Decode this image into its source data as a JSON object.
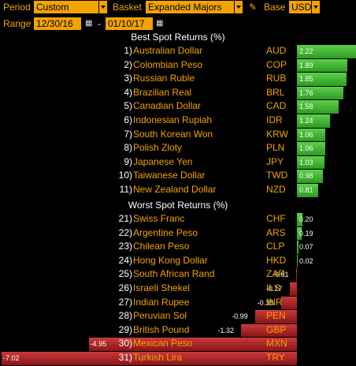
{
  "toolbar": {
    "period_label": "Period",
    "period_value": "Custom",
    "basket_label": "Basket",
    "basket_value": "Expanded Majors",
    "base_label": "Base",
    "base_value": "USD",
    "range_label": "Range",
    "range_start": "12/30/16",
    "range_dash": "-",
    "range_end": "01/10/17"
  },
  "best_title": "Best Spot Returns (%)",
  "worst_title": "Worst Spot Returns (%)",
  "colors": {
    "accent": "#f3a300",
    "positive": "#3aab2c",
    "negative": "#a82020"
  },
  "chart_data": {
    "type": "bar",
    "best": [
      {
        "rank": "1)",
        "name": "Australian Dollar",
        "code": "AUD",
        "value": 2.22,
        "label": "2.22"
      },
      {
        "rank": "2)",
        "name": "Colombian Peso",
        "code": "COP",
        "value": 1.89,
        "label": "1.89"
      },
      {
        "rank": "3)",
        "name": "Russian Ruble",
        "code": "RUB",
        "value": 1.85,
        "label": "1.85"
      },
      {
        "rank": "4)",
        "name": "Brazilian Real",
        "code": "BRL",
        "value": 1.76,
        "label": "1.76"
      },
      {
        "rank": "5)",
        "name": "Canadian Dollar",
        "code": "CAD",
        "value": 1.58,
        "label": "1.58"
      },
      {
        "rank": "6)",
        "name": "Indonesian Rupiah",
        "code": "IDR",
        "value": 1.24,
        "label": "1.24"
      },
      {
        "rank": "7)",
        "name": "South Korean Won",
        "code": "KRW",
        "value": 1.06,
        "label": "1.06"
      },
      {
        "rank": "8)",
        "name": "Polish Zloty",
        "code": "PLN",
        "value": 1.06,
        "label": "1.06"
      },
      {
        "rank": "9)",
        "name": "Japanese Yen",
        "code": "JPY",
        "value": 1.03,
        "label": "1.03"
      },
      {
        "rank": "10)",
        "name": "Taiwanese Dollar",
        "code": "TWD",
        "value": 0.98,
        "label": "0.98"
      },
      {
        "rank": "11)",
        "name": "New Zealand Dollar",
        "code": "NZD",
        "value": 0.81,
        "label": "0.81"
      }
    ],
    "worst": [
      {
        "rank": "21)",
        "name": "Swiss Franc",
        "code": "CHF",
        "value": 0.2,
        "label": "0.20"
      },
      {
        "rank": "22)",
        "name": "Argentine Peso",
        "code": "ARS",
        "value": 0.19,
        "label": "0.19"
      },
      {
        "rank": "23)",
        "name": "Chilean Peso",
        "code": "CLP",
        "value": 0.07,
        "label": "0.07"
      },
      {
        "rank": "24)",
        "name": "Hong Kong Dollar",
        "code": "HKD",
        "value": 0.02,
        "label": "0.02"
      },
      {
        "rank": "25)",
        "name": "South African Rand",
        "code": "ZAR",
        "value": -0.01,
        "label": "-0.01"
      },
      {
        "rank": "26)",
        "name": "Israeli Shekel",
        "code": "ILS",
        "value": -0.17,
        "label": "-0.17"
      },
      {
        "rank": "27)",
        "name": "Indian Rupee",
        "code": "INR",
        "value": -0.38,
        "label": "-0.38"
      },
      {
        "rank": "28)",
        "name": "Peruvian Sol",
        "code": "PEN",
        "value": -0.99,
        "label": "-0.99"
      },
      {
        "rank": "29)",
        "name": "British Pound",
        "code": "GBP",
        "value": -1.32,
        "label": "-1.32"
      },
      {
        "rank": "30)",
        "name": "Mexican Peso",
        "code": "MXN",
        "value": -4.95,
        "label": "-4.95"
      },
      {
        "rank": "31)",
        "name": "Turkish Lira",
        "code": "TRY",
        "value": -7.02,
        "label": "-7.02"
      }
    ]
  }
}
